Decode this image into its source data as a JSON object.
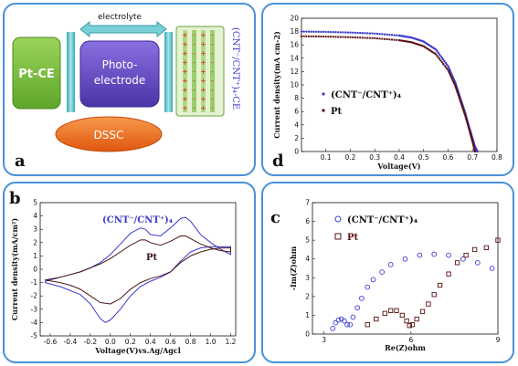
{
  "panel_a": {
    "label": "a",
    "counter_electrode": "Pt-CE",
    "electrolyte": "electrolyte",
    "photo_line1": "Photo-",
    "photo_line2": "electrode",
    "cnt_ce": "(CNT⁻/CNT⁺)₄-CE",
    "dssc": "DSSC",
    "colors": {
      "pt_ce": "#7cc243",
      "photo": "#6a4fc9",
      "cnt": "#a8d27a",
      "dssc": "#f07522",
      "electrolyte": "#7ad0d8"
    }
  },
  "panel_b": {
    "label": "b",
    "series_label_cnt": "(CNT⁻/CNT⁺)₄",
    "series_label_pt": "Pt"
  },
  "panel_c": {
    "label": "c",
    "legend_cnt": "(CNT⁻/CNT⁺)₄",
    "legend_pt": "Pt"
  },
  "panel_d": {
    "label": "d",
    "legend_cnt": "(CNT⁻/CNT⁺)₄",
    "legend_pt": "Pt"
  },
  "chart_data": [
    {
      "id": "d",
      "type": "scatter",
      "xlabel": "Voltage(V)",
      "ylabel": "Current density(mA cm-2)",
      "xlim": [
        0,
        0.8
      ],
      "ylim": [
        0,
        20
      ],
      "xticks": [
        "0.1",
        "0.2",
        "0.3",
        "0.4",
        "0.5",
        "0.6",
        "0.7",
        "0.8"
      ],
      "yticks": [
        "0",
        "2",
        "4",
        "6",
        "8",
        "10",
        "12",
        "14",
        "16",
        "18",
        "20"
      ],
      "series": [
        {
          "name": "(CNT⁻/CNT⁺)₄",
          "color": "#3a3acf",
          "x": [
            0.0,
            0.1,
            0.2,
            0.3,
            0.4,
            0.45,
            0.5,
            0.55,
            0.6,
            0.63,
            0.65,
            0.67,
            0.69,
            0.7,
            0.71,
            0.72
          ],
          "y": [
            18.0,
            17.95,
            17.85,
            17.7,
            17.4,
            17.1,
            16.5,
            15.3,
            12.8,
            10.3,
            8.0,
            5.8,
            3.2,
            1.9,
            0.7,
            0.0
          ]
        },
        {
          "name": "Pt",
          "color": "#5a1010",
          "x": [
            0.0,
            0.1,
            0.2,
            0.3,
            0.4,
            0.45,
            0.5,
            0.55,
            0.6,
            0.63,
            0.65,
            0.67,
            0.69,
            0.7,
            0.71
          ],
          "y": [
            17.3,
            17.25,
            17.15,
            17.0,
            16.7,
            16.4,
            15.8,
            14.6,
            12.2,
            9.8,
            7.6,
            5.4,
            2.8,
            1.5,
            0.0
          ]
        }
      ]
    },
    {
      "id": "b",
      "type": "line",
      "xlabel": "Voltage(V)vs.Ag/Agcl",
      "ylabel": "Current density(mA/cm²)",
      "xlim": [
        -0.7,
        1.25
      ],
      "ylim": [
        -5,
        5
      ],
      "xticks": [
        "-0.6",
        "-0.4",
        "-0.2",
        "0.0",
        "0.2",
        "0.4",
        "0.6",
        "0.8",
        "1.0",
        "1.2"
      ],
      "yticks": [
        "-5",
        "-4",
        "-3",
        "-2",
        "-1",
        "0",
        "1",
        "2",
        "3",
        "4",
        "5"
      ],
      "series": [
        {
          "name": "(CNT⁻/CNT⁺)₄",
          "color": "#3a3acf",
          "x": [
            -0.65,
            -0.5,
            -0.4,
            -0.3,
            -0.2,
            -0.1,
            0.0,
            0.1,
            0.2,
            0.3,
            0.35,
            0.4,
            0.5,
            0.6,
            0.7,
            0.75,
            0.8,
            0.9,
            1.0,
            1.1,
            1.2,
            1.2,
            1.1,
            1.0,
            0.9,
            0.8,
            0.7,
            0.6,
            0.5,
            0.4,
            0.3,
            0.2,
            0.1,
            0.0,
            -0.05,
            -0.1,
            -0.2,
            -0.3,
            -0.4,
            -0.5,
            -0.65
          ],
          "y": [
            -0.9,
            -0.6,
            -0.4,
            -0.2,
            0.1,
            0.5,
            1.1,
            1.9,
            2.7,
            3.1,
            3.0,
            2.6,
            2.5,
            3.1,
            3.8,
            3.9,
            3.6,
            2.6,
            2.0,
            1.5,
            1.1,
            1.7,
            1.7,
            1.7,
            1.6,
            1.3,
            0.6,
            -0.2,
            -0.6,
            -0.9,
            -1.3,
            -2.0,
            -3.0,
            -3.8,
            -4.0,
            -3.7,
            -2.6,
            -1.9,
            -1.6,
            -1.3,
            -1.0
          ]
        },
        {
          "name": "Pt",
          "color": "#4a1818",
          "x": [
            -0.65,
            -0.5,
            -0.4,
            -0.3,
            -0.2,
            -0.1,
            0.0,
            0.1,
            0.2,
            0.3,
            0.35,
            0.4,
            0.5,
            0.6,
            0.7,
            0.75,
            0.8,
            0.9,
            1.0,
            1.1,
            1.2,
            1.2,
            1.1,
            1.0,
            0.9,
            0.8,
            0.7,
            0.6,
            0.5,
            0.4,
            0.3,
            0.2,
            0.1,
            0.0,
            -0.1,
            -0.2,
            -0.3,
            -0.4,
            -0.5,
            -0.65
          ],
          "y": [
            -0.8,
            -0.6,
            -0.4,
            -0.2,
            0.1,
            0.4,
            0.8,
            1.3,
            1.8,
            2.2,
            2.2,
            2.0,
            1.8,
            2.1,
            2.5,
            2.5,
            2.3,
            1.9,
            1.6,
            1.4,
            1.3,
            1.6,
            1.6,
            1.5,
            1.3,
            1.0,
            0.5,
            -0.2,
            -0.5,
            -0.7,
            -1.0,
            -1.5,
            -2.2,
            -2.6,
            -2.5,
            -2.0,
            -1.5,
            -1.2,
            -1.0,
            -0.8
          ]
        }
      ]
    },
    {
      "id": "c",
      "type": "scatter",
      "xlabel": "Re(Z)ohm",
      "ylabel": "-Im(Z)ohm",
      "xlim": [
        2.6,
        9
      ],
      "ylim": [
        0,
        7
      ],
      "xticks": [
        "3",
        "6",
        "9"
      ],
      "yticks": [
        "0",
        "1",
        "2",
        "3",
        "4",
        "5",
        "6",
        "7"
      ],
      "series": [
        {
          "name": "(CNT⁻/CNT⁺)₄",
          "color": "#3a3acf",
          "x": [
            3.3,
            3.4,
            3.5,
            3.6,
            3.7,
            3.8,
            3.9,
            4.0,
            4.15,
            4.3,
            4.5,
            4.7,
            5.0,
            5.3,
            5.8,
            6.3,
            6.8,
            7.3,
            7.8,
            8.3,
            8.8
          ],
          "y": [
            0.3,
            0.6,
            0.75,
            0.8,
            0.7,
            0.5,
            0.5,
            0.9,
            1.4,
            1.9,
            2.5,
            2.9,
            3.3,
            3.7,
            4.0,
            4.2,
            4.25,
            4.2,
            4.0,
            3.8,
            3.5
          ]
        },
        {
          "name": "Pt",
          "color": "#5a1010",
          "x": [
            4.5,
            4.8,
            5.1,
            5.3,
            5.5,
            5.7,
            5.85,
            5.95,
            6.05,
            6.2,
            6.4,
            6.6,
            6.8,
            7.0,
            7.3,
            7.6,
            7.9,
            8.2,
            8.6,
            9.0
          ],
          "y": [
            0.5,
            0.8,
            1.1,
            1.25,
            1.25,
            1.0,
            0.7,
            0.45,
            0.5,
            0.8,
            1.2,
            1.6,
            2.1,
            2.6,
            3.2,
            3.8,
            4.2,
            4.5,
            4.6,
            5.0
          ]
        }
      ]
    }
  ]
}
